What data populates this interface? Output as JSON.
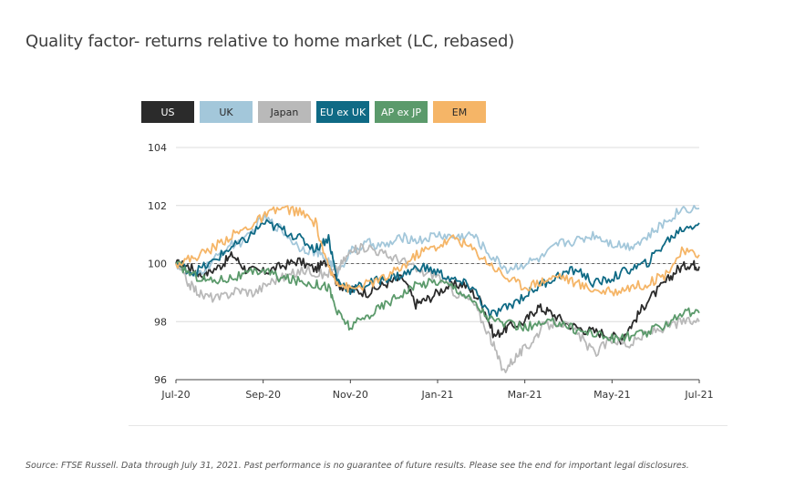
{
  "title": "Quality factor- returns relative to home market (LC, rebased)",
  "source": "Source: FTSE Russell. Data through July 31, 2021. Past performance is no guarantee of future results. Please see the end for important legal disclosures.",
  "chart_data": {
    "type": "line",
    "title": "Quality factor- returns relative to home market (LC, rebased)",
    "xlabel": "",
    "ylabel": "",
    "x_ticks": [
      "Jul-20",
      "Sep-20",
      "Nov-20",
      "Jan-21",
      "Mar-21",
      "May-21",
      "Jul-21"
    ],
    "x_tick_months": [
      0,
      2,
      4,
      6,
      8,
      10,
      12
    ],
    "xlim": [
      0,
      12
    ],
    "ylim": [
      96,
      104
    ],
    "y_ticks": [
      96,
      98,
      100,
      102,
      104
    ],
    "reference_line": 100,
    "grid": "horizontal",
    "legend_position": "top",
    "series": [
      {
        "name": "US",
        "color": "#2b2b2b",
        "text_color": "#ffffff",
        "x": [
          0,
          0.3,
          0.6,
          1.0,
          1.3,
          1.6,
          2.0,
          2.4,
          2.8,
          3.2,
          3.5,
          3.7,
          4.0,
          4.4,
          4.8,
          5.2,
          5.5,
          5.8,
          6.2,
          6.6,
          7.0,
          7.3,
          7.6,
          8.0,
          8.3,
          8.6,
          9.0,
          9.4,
          9.8,
          10.2,
          10.5,
          10.8,
          11.2,
          11.5,
          11.8,
          12.0
        ],
        "values": [
          100,
          99.9,
          99.6,
          99.9,
          100.3,
          99.8,
          99.7,
          99.9,
          100.1,
          99.8,
          100.1,
          99.3,
          99.1,
          99.0,
          99.3,
          99.5,
          98.6,
          98.8,
          99.2,
          99.3,
          98.7,
          97.5,
          97.8,
          98.0,
          98.5,
          98.3,
          97.9,
          97.7,
          97.6,
          97.4,
          98.0,
          98.7,
          99.3,
          99.8,
          100.0,
          99.9
        ]
      },
      {
        "name": "UK",
        "color": "#a3c7da",
        "text_color": "#2b2b2b",
        "x": [
          0,
          0.4,
          0.8,
          1.2,
          1.6,
          2.0,
          2.4,
          2.8,
          3.2,
          3.5,
          3.7,
          4.0,
          4.4,
          4.8,
          5.2,
          5.6,
          6.0,
          6.4,
          6.8,
          7.2,
          7.6,
          8.0,
          8.4,
          8.8,
          9.2,
          9.6,
          10.0,
          10.4,
          10.8,
          11.2,
          11.6,
          12.0
        ],
        "values": [
          100,
          99.5,
          100.0,
          100.6,
          100.8,
          101.6,
          101.2,
          100.6,
          100.4,
          100.1,
          99.7,
          100.4,
          100.7,
          100.6,
          100.9,
          100.8,
          101.0,
          100.9,
          101.0,
          100.3,
          99.8,
          100.0,
          100.2,
          100.7,
          100.8,
          101.0,
          100.7,
          100.6,
          100.9,
          101.4,
          101.9,
          101.9
        ]
      },
      {
        "name": "Japan",
        "color": "#b9b9b9",
        "text_color": "#2b2b2b",
        "x": [
          0,
          0.3,
          0.6,
          1.0,
          1.4,
          1.8,
          2.2,
          2.6,
          3.0,
          3.4,
          3.7,
          4.0,
          4.4,
          4.8,
          5.2,
          5.6,
          6.0,
          6.4,
          6.8,
          7.2,
          7.5,
          7.8,
          8.1,
          8.4,
          8.8,
          9.2,
          9.6,
          10.0,
          10.4,
          10.8,
          11.2,
          11.6,
          12.0
        ],
        "values": [
          100,
          99.3,
          98.9,
          98.8,
          99.1,
          99.0,
          99.4,
          99.6,
          99.8,
          99.6,
          99.8,
          100.4,
          100.6,
          100.3,
          100.1,
          99.7,
          99.6,
          99.0,
          98.7,
          97.5,
          96.3,
          96.8,
          97.2,
          97.8,
          98.0,
          97.6,
          96.9,
          97.4,
          97.2,
          97.6,
          97.8,
          98.0,
          98.0
        ]
      },
      {
        "name": "EU ex UK",
        "color": "#0f6a85",
        "text_color": "#ffffff",
        "x": [
          0,
          0.4,
          0.8,
          1.2,
          1.6,
          2.0,
          2.4,
          2.8,
          3.2,
          3.5,
          3.7,
          4.0,
          4.4,
          4.8,
          5.2,
          5.6,
          6.0,
          6.4,
          6.8,
          7.2,
          7.6,
          8.0,
          8.4,
          8.8,
          9.2,
          9.6,
          10.0,
          10.4,
          10.8,
          11.2,
          11.6,
          12.0
        ],
        "values": [
          100,
          99.7,
          100.0,
          100.5,
          100.8,
          101.4,
          101.2,
          100.9,
          100.5,
          100.9,
          99.4,
          99.1,
          99.3,
          99.5,
          99.6,
          99.9,
          99.7,
          99.4,
          99.2,
          98.2,
          98.5,
          98.9,
          99.3,
          99.6,
          99.8,
          99.3,
          99.5,
          99.8,
          100.0,
          100.7,
          101.2,
          101.4
        ]
      },
      {
        "name": "AP ex JP",
        "color": "#5b9a6b",
        "text_color": "#ffffff",
        "x": [
          0,
          0.4,
          0.8,
          1.2,
          1.6,
          2.0,
          2.4,
          2.8,
          3.2,
          3.5,
          3.7,
          4.0,
          4.4,
          4.8,
          5.2,
          5.6,
          6.0,
          6.4,
          6.8,
          7.2,
          7.6,
          8.0,
          8.4,
          8.8,
          9.2,
          9.6,
          10.0,
          10.4,
          10.8,
          11.2,
          11.6,
          12.0
        ],
        "values": [
          100,
          99.6,
          99.4,
          99.5,
          99.6,
          99.8,
          99.5,
          99.4,
          99.3,
          99.2,
          98.3,
          97.8,
          98.2,
          98.6,
          99.0,
          99.3,
          99.4,
          99.2,
          98.7,
          98.1,
          97.9,
          97.8,
          97.9,
          98.0,
          97.7,
          97.6,
          97.4,
          97.5,
          97.6,
          97.9,
          98.3,
          98.3
        ]
      },
      {
        "name": "EM",
        "color": "#f5b567",
        "text_color": "#2b2b2b",
        "x": [
          0,
          0.4,
          0.8,
          1.2,
          1.6,
          2.0,
          2.4,
          2.8,
          3.2,
          3.5,
          3.7,
          4.0,
          4.4,
          4.8,
          5.2,
          5.6,
          6.0,
          6.4,
          6.8,
          7.2,
          7.6,
          8.0,
          8.4,
          8.8,
          9.2,
          9.6,
          10.0,
          10.4,
          10.8,
          11.2,
          11.6,
          12.0
        ],
        "values": [
          100,
          100.2,
          100.5,
          100.9,
          101.2,
          101.6,
          101.9,
          101.8,
          101.4,
          99.8,
          99.4,
          99.1,
          99.3,
          99.5,
          99.9,
          100.4,
          100.6,
          100.9,
          100.5,
          100.0,
          99.5,
          99.2,
          99.4,
          99.6,
          99.3,
          99.1,
          99.0,
          99.2,
          99.3,
          99.6,
          100.4,
          100.3
        ]
      }
    ]
  }
}
